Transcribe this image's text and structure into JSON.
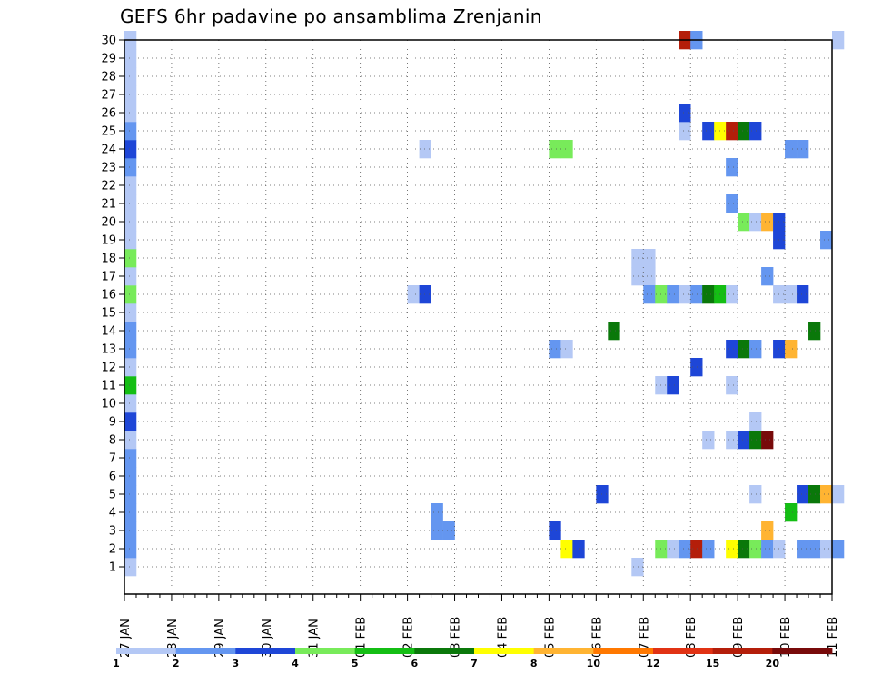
{
  "chart_data": {
    "type": "heatmap",
    "title": "GEFS 6hr padavine po ansamblima Zrenjanin",
    "ylim": [
      0,
      30
    ],
    "y_ticks": [
      "1",
      "2",
      "3",
      "4",
      "5",
      "6",
      "7",
      "8",
      "9",
      "10",
      "11",
      "12",
      "13",
      "14",
      "15",
      "16",
      "17",
      "18",
      "19",
      "20",
      "21",
      "22",
      "23",
      "24",
      "25",
      "26",
      "27",
      "28",
      "29",
      "30"
    ],
    "x_ticks": [
      "27 JAN",
      "28 JAN",
      "29 JAN",
      "30 JAN",
      "31 JAN",
      "01 FEB",
      "02 FEB",
      "03 FEB",
      "04 FEB",
      "05 FEB",
      "06 FEB",
      "07 FEB",
      "08 FEB",
      "09 FEB",
      "10 FEB",
      "11 FEB"
    ],
    "grid": true,
    "steps_per_day": 4,
    "colorbar": {
      "colors": [
        "#b4c8f5",
        "#6496f0",
        "#1e46d7",
        "#78eb5a",
        "#14be14",
        "#0a780a",
        "#ffff00",
        "#ffb432",
        "#ff7800",
        "#e13214",
        "#b41e0a",
        "#780a0a"
      ],
      "labels": [
        "1",
        "2",
        "3",
        "4",
        "5",
        "6",
        "7",
        "8",
        "10",
        "12",
        "15",
        "20"
      ]
    },
    "cells": [
      {
        "m": 1,
        "t": 1,
        "c": 1
      },
      {
        "m": 2,
        "t": 1,
        "c": 2
      },
      {
        "m": 3,
        "t": 1,
        "c": 2
      },
      {
        "m": 4,
        "t": 1,
        "c": 2
      },
      {
        "m": 5,
        "t": 1,
        "c": 2
      },
      {
        "m": 6,
        "t": 1,
        "c": 2
      },
      {
        "m": 7,
        "t": 1,
        "c": 2
      },
      {
        "m": 8,
        "t": 1,
        "c": 1
      },
      {
        "m": 9,
        "t": 1,
        "c": 3
      },
      {
        "m": 10,
        "t": 1,
        "c": 1
      },
      {
        "m": 11,
        "t": 1,
        "c": 5
      },
      {
        "m": 12,
        "t": 1,
        "c": 1
      },
      {
        "m": 13,
        "t": 1,
        "c": 2
      },
      {
        "m": 14,
        "t": 1,
        "c": 2
      },
      {
        "m": 15,
        "t": 1,
        "c": 1
      },
      {
        "m": 16,
        "t": 1,
        "c": 4
      },
      {
        "m": 17,
        "t": 1,
        "c": 1
      },
      {
        "m": 18,
        "t": 1,
        "c": 4
      },
      {
        "m": 19,
        "t": 1,
        "c": 1
      },
      {
        "m": 20,
        "t": 1,
        "c": 1
      },
      {
        "m": 21,
        "t": 1,
        "c": 1
      },
      {
        "m": 22,
        "t": 1,
        "c": 1
      },
      {
        "m": 23,
        "t": 1,
        "c": 2
      },
      {
        "m": 24,
        "t": 1,
        "c": 3
      },
      {
        "m": 25,
        "t": 1,
        "c": 2
      },
      {
        "m": 26,
        "t": 1,
        "c": 1
      },
      {
        "m": 27,
        "t": 1,
        "c": 1
      },
      {
        "m": 28,
        "t": 1,
        "c": 1
      },
      {
        "m": 29,
        "t": 1,
        "c": 1
      },
      {
        "m": 30,
        "t": 1,
        "c": 1
      },
      {
        "m": 3,
        "t": 27,
        "c": 2
      },
      {
        "m": 3,
        "t": 28,
        "c": 2
      },
      {
        "m": 4,
        "t": 27,
        "c": 2
      },
      {
        "m": 16,
        "t": 25,
        "c": 1
      },
      {
        "m": 16,
        "t": 26,
        "c": 3
      },
      {
        "m": 24,
        "t": 26,
        "c": 1
      },
      {
        "m": 3,
        "t": 37,
        "c": 3
      },
      {
        "m": 13,
        "t": 37,
        "c": 2
      },
      {
        "m": 13,
        "t": 38,
        "c": 1
      },
      {
        "m": 24,
        "t": 37,
        "c": 4
      },
      {
        "m": 24,
        "t": 38,
        "c": 4
      },
      {
        "m": 2,
        "t": 38,
        "c": 7
      },
      {
        "m": 2,
        "t": 39,
        "c": 3
      },
      {
        "m": 5,
        "t": 41,
        "c": 3
      },
      {
        "m": 14,
        "t": 42,
        "c": 6
      },
      {
        "m": 1,
        "t": 44,
        "c": 1
      },
      {
        "m": 17,
        "t": 44,
        "c": 1
      },
      {
        "m": 17,
        "t": 45,
        "c": 1
      },
      {
        "m": 18,
        "t": 44,
        "c": 1
      },
      {
        "m": 18,
        "t": 45,
        "c": 1
      },
      {
        "m": 16,
        "t": 45,
        "c": 2
      },
      {
        "m": 16,
        "t": 46,
        "c": 4
      },
      {
        "m": 16,
        "t": 47,
        "c": 2
      },
      {
        "m": 16,
        "t": 48,
        "c": 1
      },
      {
        "m": 16,
        "t": 49,
        "c": 2
      },
      {
        "m": 16,
        "t": 50,
        "c": 6
      },
      {
        "m": 16,
        "t": 51,
        "c": 5
      },
      {
        "m": 16,
        "t": 52,
        "c": 1
      },
      {
        "m": 2,
        "t": 46,
        "c": 4
      },
      {
        "m": 2,
        "t": 47,
        "c": 1
      },
      {
        "m": 2,
        "t": 48,
        "c": 2
      },
      {
        "m": 2,
        "t": 49,
        "c": 11
      },
      {
        "m": 2,
        "t": 50,
        "c": 2
      },
      {
        "m": 2,
        "t": 52,
        "c": 7
      },
      {
        "m": 2,
        "t": 53,
        "c": 6
      },
      {
        "m": 2,
        "t": 54,
        "c": 4
      },
      {
        "m": 2,
        "t": 55,
        "c": 2
      },
      {
        "m": 2,
        "t": 56,
        "c": 1
      },
      {
        "m": 11,
        "t": 46,
        "c": 1
      },
      {
        "m": 11,
        "t": 47,
        "c": 3
      },
      {
        "m": 11,
        "t": 52,
        "c": 1
      },
      {
        "m": 12,
        "t": 49,
        "c": 3
      },
      {
        "m": 25,
        "t": 48,
        "c": 1
      },
      {
        "m": 26,
        "t": 48,
        "c": 3
      },
      {
        "m": 30,
        "t": 48,
        "c": 11
      },
      {
        "m": 30,
        "t": 49,
        "c": 2
      },
      {
        "m": 8,
        "t": 50,
        "c": 1
      },
      {
        "m": 8,
        "t": 52,
        "c": 1
      },
      {
        "m": 8,
        "t": 53,
        "c": 3
      },
      {
        "m": 8,
        "t": 54,
        "c": 6
      },
      {
        "m": 8,
        "t": 55,
        "c": 12
      },
      {
        "m": 25,
        "t": 50,
        "c": 3
      },
      {
        "m": 25,
        "t": 51,
        "c": 7
      },
      {
        "m": 25,
        "t": 52,
        "c": 11
      },
      {
        "m": 25,
        "t": 53,
        "c": 6
      },
      {
        "m": 25,
        "t": 54,
        "c": 3
      },
      {
        "m": 13,
        "t": 52,
        "c": 3
      },
      {
        "m": 13,
        "t": 53,
        "c": 6
      },
      {
        "m": 13,
        "t": 54,
        "c": 2
      },
      {
        "m": 13,
        "t": 56,
        "c": 3
      },
      {
        "m": 13,
        "t": 57,
        "c": 8
      },
      {
        "m": 21,
        "t": 52,
        "c": 2
      },
      {
        "m": 20,
        "t": 53,
        "c": 4
      },
      {
        "m": 23,
        "t": 52,
        "c": 2
      },
      {
        "m": 9,
        "t": 54,
        "c": 1
      },
      {
        "m": 5,
        "t": 54,
        "c": 1
      },
      {
        "m": 20,
        "t": 54,
        "c": 1
      },
      {
        "m": 20,
        "t": 55,
        "c": 8
      },
      {
        "m": 20,
        "t": 56,
        "c": 3
      },
      {
        "m": 3,
        "t": 55,
        "c": 8
      },
      {
        "m": 4,
        "t": 57,
        "c": 5
      },
      {
        "m": 17,
        "t": 55,
        "c": 2
      },
      {
        "m": 16,
        "t": 56,
        "c": 1
      },
      {
        "m": 16,
        "t": 57,
        "c": 1
      },
      {
        "m": 16,
        "t": 58,
        "c": 3
      },
      {
        "m": 19,
        "t": 56,
        "c": 3
      },
      {
        "m": 24,
        "t": 57,
        "c": 2
      },
      {
        "m": 24,
        "t": 58,
        "c": 2
      },
      {
        "m": 2,
        "t": 58,
        "c": 2
      },
      {
        "m": 2,
        "t": 59,
        "c": 2
      },
      {
        "m": 2,
        "t": 60,
        "c": 1
      },
      {
        "m": 2,
        "t": 61,
        "c": 2
      },
      {
        "m": 5,
        "t": 58,
        "c": 3
      },
      {
        "m": 5,
        "t": 59,
        "c": 6
      },
      {
        "m": 5,
        "t": 60,
        "c": 8
      },
      {
        "m": 5,
        "t": 61,
        "c": 1
      },
      {
        "m": 14,
        "t": 59,
        "c": 6
      },
      {
        "m": 19,
        "t": 60,
        "c": 2
      },
      {
        "m": 30,
        "t": 61,
        "c": 1
      }
    ]
  }
}
